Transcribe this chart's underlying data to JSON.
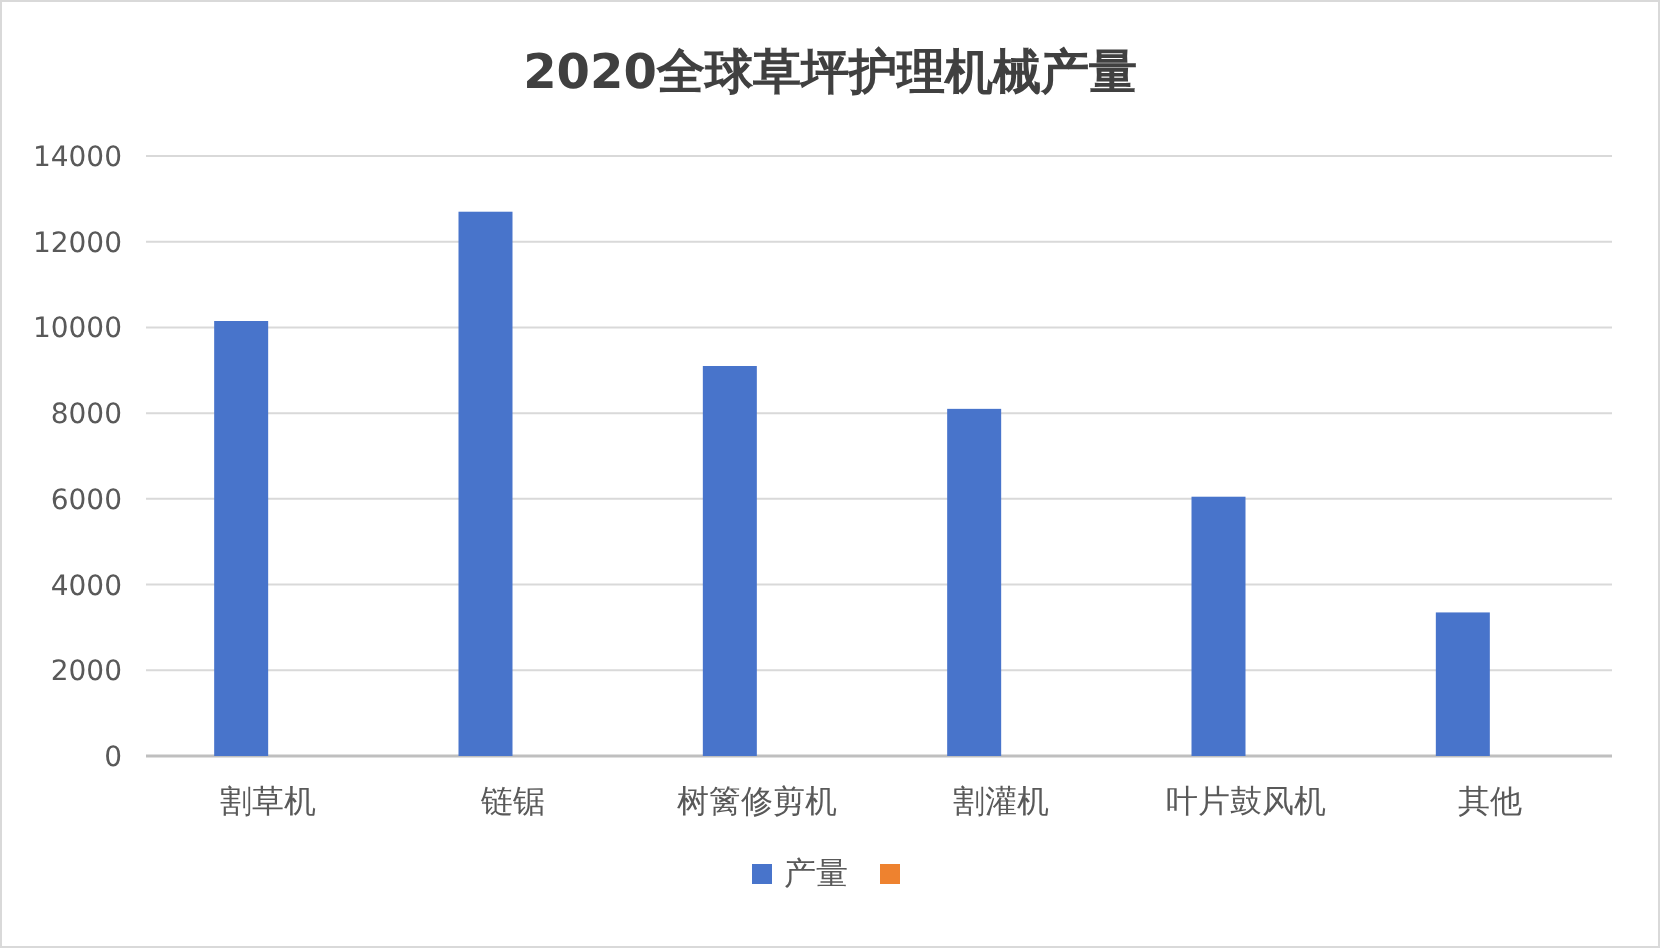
{
  "chart_data": {
    "type": "bar",
    "title": "2020全球草坪护理机械产量",
    "categories": [
      "割草机",
      "链锯",
      "树篱修剪机",
      "割灌机",
      "叶片鼓风机",
      "其他"
    ],
    "series": [
      {
        "name": "产量",
        "color": "#4874cb",
        "values": [
          10150,
          12700,
          9100,
          8100,
          6050,
          3350
        ]
      },
      {
        "color": "#ee822f",
        "values": [
          null,
          null,
          null,
          null,
          null,
          null
        ]
      }
    ],
    "ylim": [
      0,
      14000
    ],
    "yticks": [
      0,
      2000,
      4000,
      6000,
      8000,
      10000,
      12000,
      14000
    ],
    "grid": "y",
    "legend": "bottom"
  }
}
